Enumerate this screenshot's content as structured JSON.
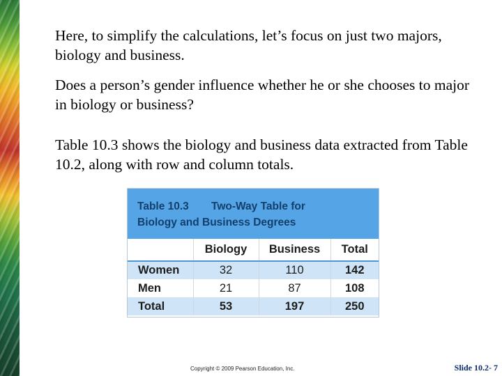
{
  "paragraphs": {
    "p1": "Here, to simplify the calculations, let’s focus on just two majors, biology and business.",
    "p2": "Does a person’s gender influence whether he or she chooses to major in biology or business?",
    "p3": "Table 10.3 shows the biology and business data extracted from Table 10.2, along with row and column totals."
  },
  "table": {
    "number": "Table 10.3",
    "title_line1": "Two-Way Table for",
    "title_line2": "Biology and Business Degrees",
    "columns": [
      "",
      "Biology",
      "Business",
      "Total"
    ],
    "rows": [
      {
        "label": "Women",
        "cells": [
          "32",
          "110",
          "142"
        ]
      },
      {
        "label": "Men",
        "cells": [
          "21",
          "87",
          "108"
        ]
      },
      {
        "label": "Total",
        "cells": [
          "53",
          "197",
          "250"
        ]
      }
    ]
  },
  "footer": {
    "copyright": "Copyright © 2009 Pearson Education, Inc.",
    "slide_number": "Slide 10.2- 7"
  },
  "colors": {
    "table_header_bg": "#55a4e6",
    "table_header_text": "#123f6b",
    "row_shade": "#cfe5f7",
    "slide_number_text": "#0b2a6b"
  }
}
